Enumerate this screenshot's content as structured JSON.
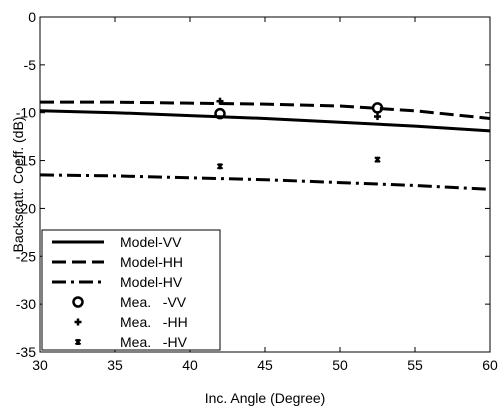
{
  "chart_data": {
    "type": "line",
    "xlabel": "Inc. Angle (Degree)",
    "ylabel": "Backscatt. Coeff. (dB)",
    "xlim": [
      30,
      60
    ],
    "ylim": [
      -35,
      0
    ],
    "xticks": [
      30,
      35,
      40,
      45,
      50,
      55,
      60
    ],
    "yticks": [
      0,
      -5,
      -10,
      -15,
      -20,
      -25,
      -30,
      -35
    ],
    "grid": false,
    "legend_position": "bottom-left",
    "series": [
      {
        "name": "Model-VV",
        "kind": "line",
        "style": "solid",
        "x": [
          30,
          35,
          40,
          45,
          50,
          55,
          60
        ],
        "y": [
          -9.8,
          -10.0,
          -10.3,
          -10.6,
          -11.0,
          -11.4,
          -11.9
        ]
      },
      {
        "name": "Model-HH",
        "kind": "line",
        "style": "dashed",
        "x": [
          30,
          35,
          40,
          45,
          50,
          55,
          60
        ],
        "y": [
          -8.9,
          -8.9,
          -9.0,
          -9.1,
          -9.3,
          -9.8,
          -10.6
        ]
      },
      {
        "name": "Model-HV",
        "kind": "line",
        "style": "dashdot",
        "x": [
          30,
          35,
          40,
          45,
          50,
          55,
          60
        ],
        "y": [
          -16.5,
          -16.6,
          -16.8,
          -17.0,
          -17.3,
          -17.6,
          -18.0
        ]
      },
      {
        "name": "Mea.   -VV",
        "kind": "marker",
        "marker": "circle",
        "x": [
          42,
          52.5
        ],
        "y": [
          -10.1,
          -9.5
        ]
      },
      {
        "name": "Mea.   -HH",
        "kind": "marker",
        "marker": "plus",
        "x": [
          42,
          52.5
        ],
        "y": [
          -8.8,
          -10.4
        ]
      },
      {
        "name": "Mea.   -HV",
        "kind": "marker",
        "marker": "star",
        "x": [
          42,
          52.5
        ],
        "y": [
          -15.6,
          -14.9
        ]
      }
    ]
  }
}
